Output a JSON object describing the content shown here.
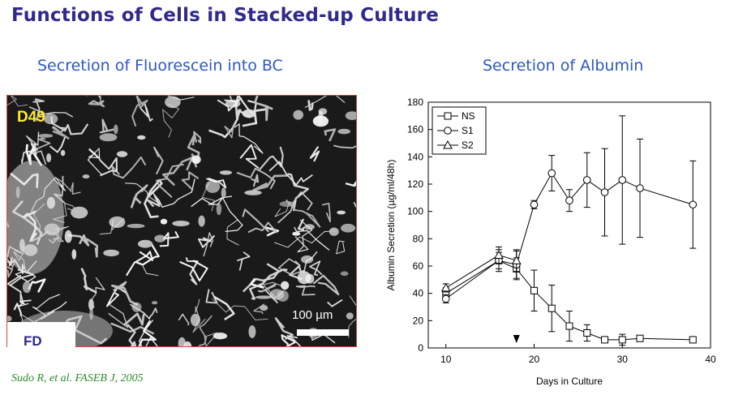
{
  "slide": {
    "title": "Functions of Cells in Stacked-up Culture",
    "left_title": "Secretion of Fluorescein into BC",
    "right_title": "Secretion of Albumin",
    "citation": "Sudo R, et al. FASEB J, 2005"
  },
  "micrograph": {
    "day_label": "D49",
    "scale_label": "100 µm",
    "corner_label": "FD"
  },
  "chart_data": {
    "type": "line",
    "xlabel": "Days in Culture",
    "ylabel": "Albumin Secretion (µg/ml/48h)",
    "xlim": [
      8,
      40
    ],
    "ylim": [
      0,
      180
    ],
    "xticks": [
      10,
      20,
      30,
      40
    ],
    "yticks": [
      0,
      20,
      40,
      60,
      80,
      100,
      120,
      140,
      160,
      180
    ],
    "legend_position": "top-left",
    "arrow_marker_x": 18,
    "series": [
      {
        "name": "NS",
        "marker": "square",
        "x": [
          10,
          16,
          18,
          20,
          22,
          24,
          26,
          28,
          30,
          32,
          38
        ],
        "y": [
          40,
          64,
          58,
          42,
          29,
          16,
          11,
          6,
          6,
          7,
          6
        ],
        "err": [
          4,
          6,
          8,
          15,
          17,
          11,
          6,
          2,
          4,
          2,
          2
        ]
      },
      {
        "name": "S1",
        "marker": "circle",
        "x": [
          10,
          16,
          18,
          20,
          22,
          24,
          26,
          28,
          30,
          32,
          38
        ],
        "y": [
          36,
          64,
          61,
          105,
          128,
          108,
          123,
          114,
          123,
          117,
          105
        ],
        "err": [
          3,
          8,
          10,
          3,
          13,
          8,
          20,
          32,
          47,
          36,
          32
        ]
      },
      {
        "name": "S2",
        "marker": "triangle",
        "x": [
          10,
          16,
          18
        ],
        "y": [
          44,
          68,
          64
        ],
        "err": [
          3,
          6,
          8
        ]
      }
    ]
  }
}
